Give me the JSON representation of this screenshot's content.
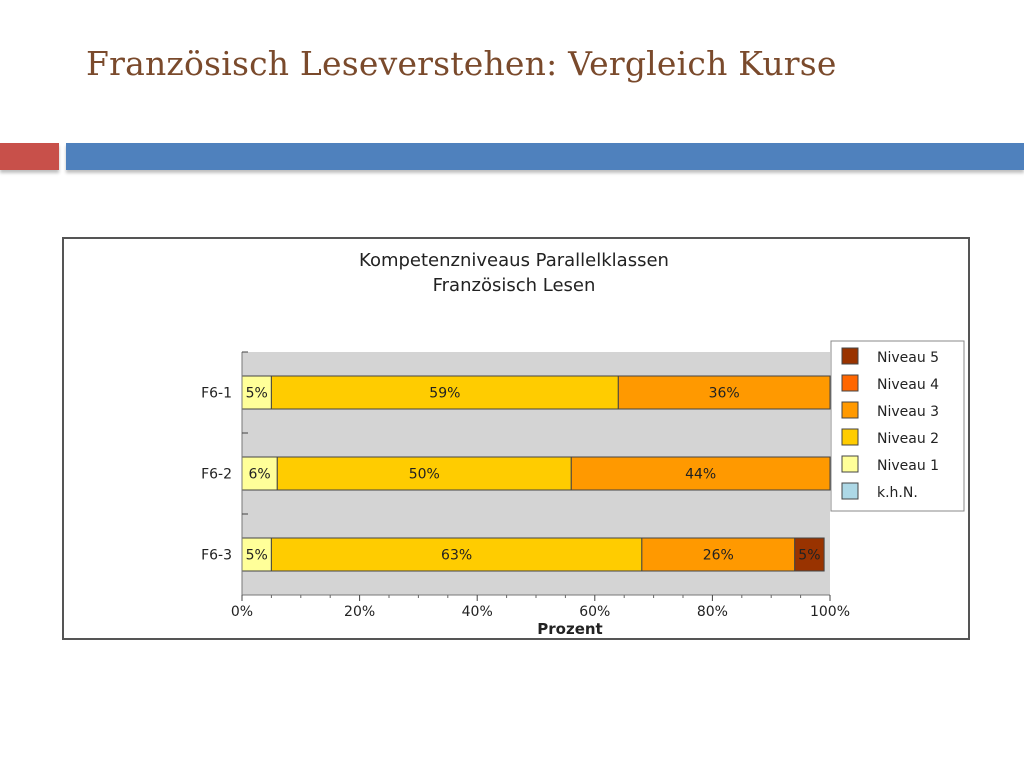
{
  "slide": {
    "title": "Französisch Leseverstehen: Vergleich Kurse"
  },
  "colors": {
    "accent_red": "#c8504a",
    "accent_blue": "#4f81bd",
    "title_text": "#7a4a2c"
  },
  "chart_data": {
    "type": "bar",
    "orientation": "horizontal",
    "stacked": true,
    "title": "Kompetenzniveaus Parallelklassen",
    "subtitle": "Französisch Lesen",
    "xlabel": "Prozent",
    "ylabel": "",
    "xlim": [
      0,
      100
    ],
    "x_ticks": [
      "0%",
      "20%",
      "40%",
      "60%",
      "80%",
      "100%"
    ],
    "categories": [
      "F6-1",
      "F6-2",
      "F6-3"
    ],
    "series": [
      {
        "name": "k.h.N.",
        "color": "#add8e6",
        "values": [
          0,
          0,
          0
        ],
        "labels": [
          "",
          "",
          ""
        ]
      },
      {
        "name": "Niveau 1",
        "color": "#ffff99",
        "values": [
          5,
          6,
          5
        ],
        "labels": [
          "5%",
          "6%",
          "5%"
        ]
      },
      {
        "name": "Niveau 2",
        "color": "#ffcc00",
        "values": [
          59,
          50,
          63
        ],
        "labels": [
          "59%",
          "50%",
          "63%"
        ]
      },
      {
        "name": "Niveau 3",
        "color": "#ff9900",
        "values": [
          36,
          44,
          26
        ],
        "labels": [
          "36%",
          "44%",
          "26%"
        ]
      },
      {
        "name": "Niveau 4",
        "color": "#ff6600",
        "values": [
          0,
          0,
          0
        ],
        "labels": [
          "",
          "",
          ""
        ]
      },
      {
        "name": "Niveau 5",
        "color": "#993300",
        "values": [
          0,
          0,
          5
        ],
        "labels": [
          "",
          "",
          "5%"
        ]
      }
    ],
    "legend_order": [
      "Niveau 5",
      "Niveau 4",
      "Niveau 3",
      "Niveau 2",
      "Niveau 1",
      "k.h.N."
    ],
    "legend_position": "right",
    "grid": false
  }
}
